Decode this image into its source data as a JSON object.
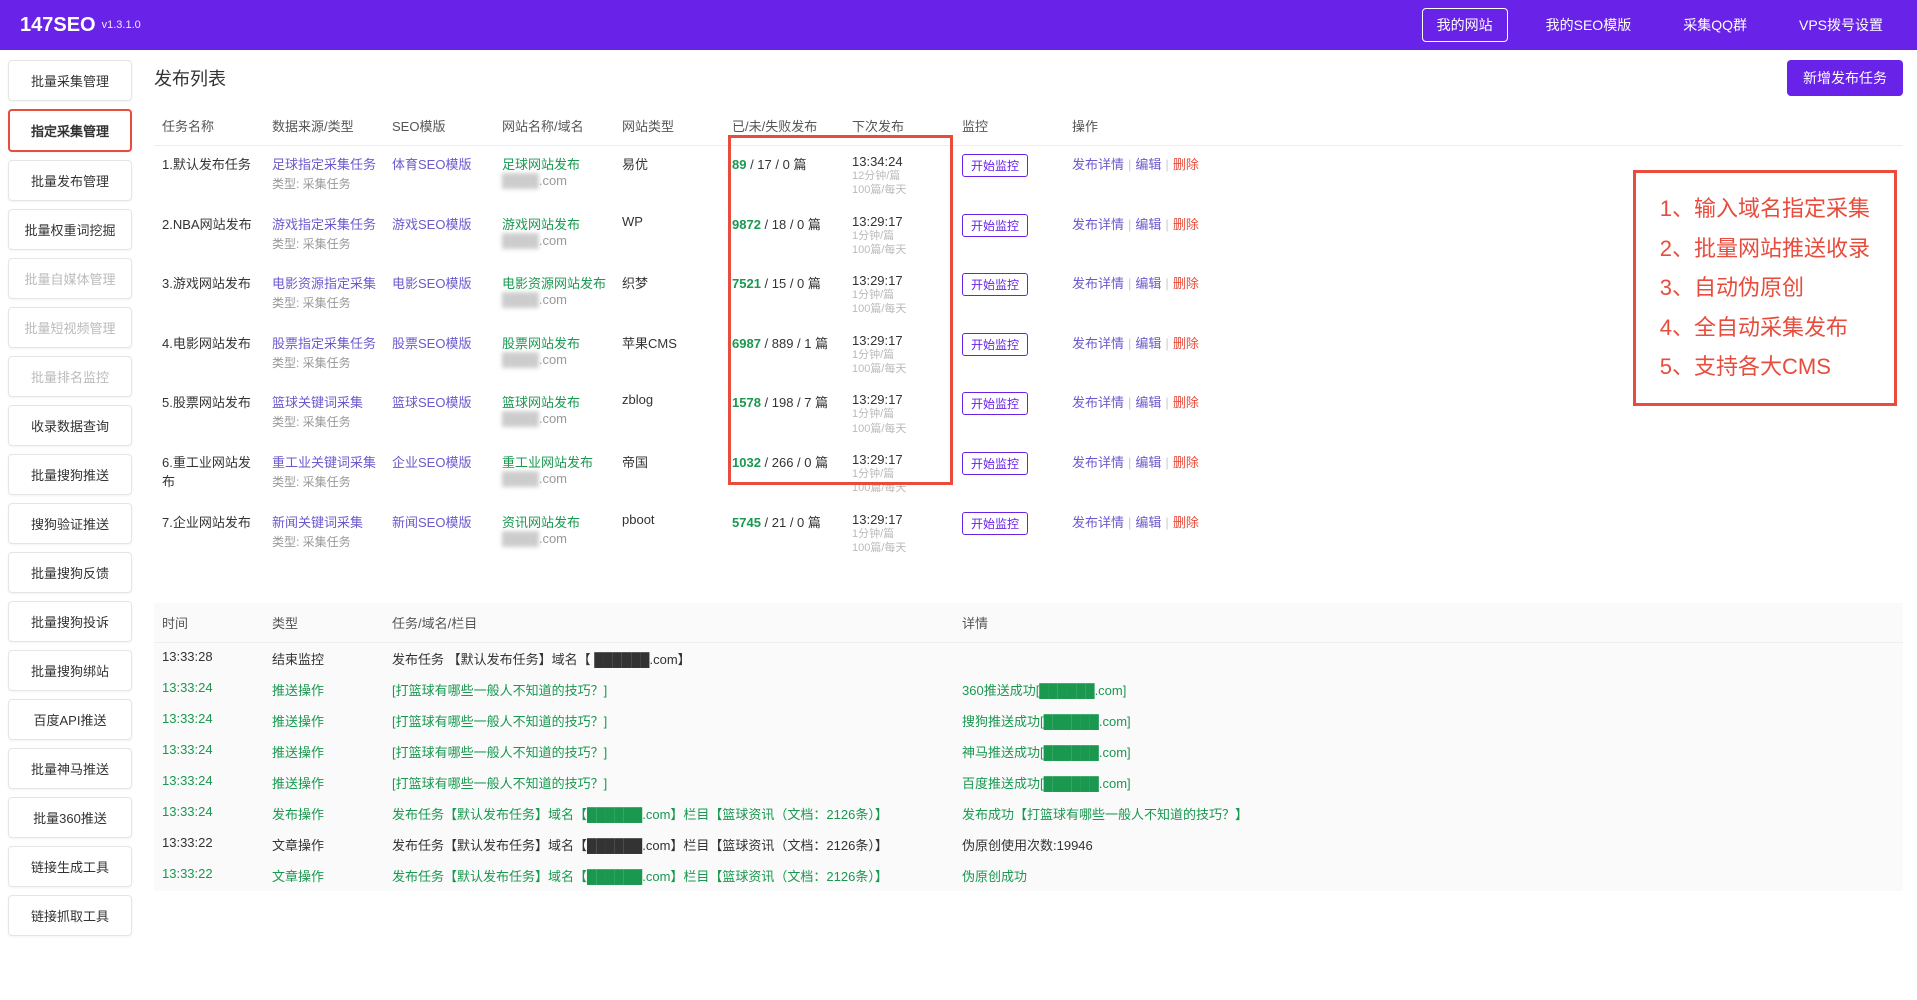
{
  "brand": {
    "name": "147SEO",
    "version": "v1.3.1.0"
  },
  "topnav": [
    {
      "label": "我的网站",
      "boxed": true
    },
    {
      "label": "我的SEO模版",
      "boxed": false
    },
    {
      "label": "采集QQ群",
      "boxed": false
    },
    {
      "label": "VPS拨号设置",
      "boxed": false
    }
  ],
  "sidebar": [
    {
      "label": "批量采集管理",
      "hl": false,
      "dim": false
    },
    {
      "label": "指定采集管理",
      "hl": true,
      "dim": false
    },
    {
      "label": "批量发布管理",
      "hl": false,
      "dim": false
    },
    {
      "label": "批量权重词挖掘",
      "hl": false,
      "dim": false
    },
    {
      "label": "批量自媒体管理",
      "hl": false,
      "dim": true
    },
    {
      "label": "批量短视频管理",
      "hl": false,
      "dim": true
    },
    {
      "label": "批量排名监控",
      "hl": false,
      "dim": true
    },
    {
      "label": "收录数据查询",
      "hl": false,
      "dim": false
    },
    {
      "label": "批量搜狗推送",
      "hl": false,
      "dim": false
    },
    {
      "label": "搜狗验证推送",
      "hl": false,
      "dim": false
    },
    {
      "label": "批量搜狗反馈",
      "hl": false,
      "dim": false
    },
    {
      "label": "批量搜狗投诉",
      "hl": false,
      "dim": false
    },
    {
      "label": "批量搜狗绑站",
      "hl": false,
      "dim": false
    },
    {
      "label": "百度API推送",
      "hl": false,
      "dim": false
    },
    {
      "label": "批量神马推送",
      "hl": false,
      "dim": false
    },
    {
      "label": "批量360推送",
      "hl": false,
      "dim": false
    },
    {
      "label": "链接生成工具",
      "hl": false,
      "dim": false
    },
    {
      "label": "链接抓取工具",
      "hl": false,
      "dim": false
    }
  ],
  "page": {
    "title": "发布列表",
    "addBtn": "新增发布任务"
  },
  "columns": {
    "c1": "任务名称",
    "c2": "数据来源/类型",
    "c3": "SEO模版",
    "c4": "网站名称/域名",
    "c5": "网站类型",
    "c6": "已/未/失败发布",
    "c7": "下次发布",
    "c8": "监控",
    "c9": "操作"
  },
  "srcSub": "类型: 采集任务",
  "monitorLabel": "开始监控",
  "opLabels": {
    "detail": "发布详情",
    "edit": "编辑",
    "del": "删除"
  },
  "nextSub1": "1分钟/篇",
  "nextSub1b": "12分钟/篇",
  "nextSub2": "100篇/每天",
  "rows": [
    {
      "idx": "1",
      "name": "默认发布任务",
      "src": "足球指定采集任务",
      "tpl": "体育SEO模版",
      "site": "足球网站发布",
      "domain": "██████.com",
      "type": "易优",
      "done": "89",
      "undone": "17",
      "fail": "0",
      "next": "13:34:24",
      "nextSub": "12分钟/篇"
    },
    {
      "idx": "2",
      "name": "NBA网站发布",
      "src": "游戏指定采集任务",
      "tpl": "游戏SEO模版",
      "site": "游戏网站发布",
      "domain": "██████.com",
      "type": "WP",
      "done": "9872",
      "undone": "18",
      "fail": "0",
      "next": "13:29:17",
      "nextSub": "1分钟/篇"
    },
    {
      "idx": "3",
      "name": "游戏网站发布",
      "src": "电影资源指定采集",
      "tpl": "电影SEO模版",
      "site": "电影资源网站发布",
      "domain": "██████.com",
      "type": "织梦",
      "done": "7521",
      "undone": "15",
      "fail": "0",
      "next": "13:29:17",
      "nextSub": "1分钟/篇"
    },
    {
      "idx": "4",
      "name": "电影网站发布",
      "src": "股票指定采集任务",
      "tpl": "股票SEO模版",
      "site": "股票网站发布",
      "domain": "██████.com",
      "type": "苹果CMS",
      "done": "6987",
      "undone": "889",
      "fail": "1",
      "next": "13:29:17",
      "nextSub": "1分钟/篇"
    },
    {
      "idx": "5",
      "name": "股票网站发布",
      "src": "篮球关键词采集",
      "tpl": "篮球SEO模版",
      "site": "篮球网站发布",
      "domain": "██████.com",
      "type": "zblog",
      "done": "1578",
      "undone": "198",
      "fail": "7",
      "next": "13:29:17",
      "nextSub": "1分钟/篇"
    },
    {
      "idx": "6",
      "name": "重工业网站发布",
      "src": "重工业关键词采集",
      "tpl": "企业SEO模版",
      "site": "重工业网站发布",
      "domain": "██████.com",
      "type": "帝国",
      "done": "1032",
      "undone": "266",
      "fail": "0",
      "next": "13:29:17",
      "nextSub": "1分钟/篇"
    },
    {
      "idx": "7",
      "name": "企业网站发布",
      "src": "新闻关键词采集",
      "tpl": "新闻SEO模版",
      "site": "资讯网站发布",
      "domain": "██████.com",
      "type": "pboot",
      "done": "5745",
      "undone": "21",
      "fail": "0",
      "next": "13:29:17",
      "nextSub": "1分钟/篇"
    }
  ],
  "callout": [
    "1、输入域名指定采集",
    "2、批量网站推送收录",
    "3、自动伪原创",
    "4、全自动采集发布",
    "5、支持各大CMS"
  ],
  "logCols": {
    "time": "时间",
    "type": "类型",
    "task": "任务/域名/栏目",
    "detail": "详情"
  },
  "logs": [
    {
      "g": false,
      "time": "13:33:28",
      "type": "结束监控",
      "task": "发布任务 【默认发布任务】域名【 ██████.com】",
      "detail": ""
    },
    {
      "g": true,
      "time": "13:33:24",
      "type": "推送操作",
      "task": "[打篮球有哪些一般人不知道的技巧？]",
      "detail": "360推送成功[██████.com]"
    },
    {
      "g": true,
      "time": "13:33:24",
      "type": "推送操作",
      "task": "[打篮球有哪些一般人不知道的技巧？]",
      "detail": "搜狗推送成功[██████.com]"
    },
    {
      "g": true,
      "time": "13:33:24",
      "type": "推送操作",
      "task": "[打篮球有哪些一般人不知道的技巧？]",
      "detail": "神马推送成功[██████.com]"
    },
    {
      "g": true,
      "time": "13:33:24",
      "type": "推送操作",
      "task": "[打篮球有哪些一般人不知道的技巧？]",
      "detail": "百度推送成功[██████.com]"
    },
    {
      "g": true,
      "time": "13:33:24",
      "type": "发布操作",
      "task": "发布任务【默认发布任务】域名【██████.com】栏目【篮球资讯（文档：2126条）】",
      "detail": "发布成功【打篮球有哪些一般人不知道的技巧？】"
    },
    {
      "g": false,
      "time": "13:33:22",
      "type": "文章操作",
      "task": "发布任务【默认发布任务】域名【██████.com】栏目【篮球资讯（文档：2126条）】",
      "detail": "伪原创使用次数:19946"
    },
    {
      "g": true,
      "time": "13:33:22",
      "type": "文章操作",
      "task": "发布任务【默认发布任务】域名【██████.com】栏目【篮球资讯（文档：2126条）】",
      "detail": "伪原创成功"
    }
  ]
}
